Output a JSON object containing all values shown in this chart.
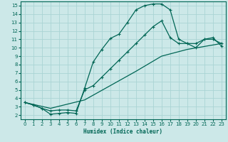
{
  "xlabel": "Humidex (Indice chaleur)",
  "background_color": "#cce8e8",
  "grid_color": "#aad4d4",
  "line_color": "#006655",
  "xlim_min": -0.5,
  "xlim_max": 23.5,
  "ylim_min": 1.5,
  "ylim_max": 15.5,
  "xticks": [
    0,
    1,
    2,
    3,
    4,
    5,
    6,
    7,
    8,
    9,
    10,
    11,
    12,
    13,
    14,
    15,
    16,
    17,
    18,
    19,
    20,
    21,
    22,
    23
  ],
  "yticks": [
    2,
    3,
    4,
    5,
    6,
    7,
    8,
    9,
    10,
    11,
    12,
    13,
    14,
    15
  ],
  "line1_x": [
    0,
    1,
    2,
    3,
    4,
    5,
    6,
    7,
    8,
    9,
    10,
    11,
    12,
    13,
    14,
    15,
    16,
    17,
    18,
    19,
    20,
    21,
    22,
    23
  ],
  "line1_y": [
    3.5,
    3.2,
    2.8,
    2.1,
    2.2,
    2.3,
    2.2,
    5.2,
    8.3,
    9.8,
    11.1,
    11.6,
    13.0,
    14.5,
    15.0,
    15.2,
    15.2,
    14.5,
    11.0,
    10.5,
    10.0,
    11.0,
    11.0,
    10.5
  ],
  "line2_x": [
    0,
    1,
    2,
    3,
    4,
    5,
    6,
    7,
    8,
    9,
    10,
    11,
    12,
    13,
    14,
    15,
    16,
    17,
    18,
    19,
    20,
    21,
    22,
    23
  ],
  "line2_y": [
    3.5,
    3.2,
    2.8,
    2.5,
    2.6,
    2.6,
    2.5,
    5.0,
    5.5,
    6.5,
    7.5,
    8.5,
    9.5,
    10.5,
    11.5,
    12.5,
    13.2,
    11.2,
    10.5,
    10.5,
    10.5,
    11.0,
    11.2,
    10.2
  ],
  "line3_x": [
    0,
    3,
    7,
    10,
    13,
    16,
    19,
    23
  ],
  "line3_y": [
    3.5,
    2.8,
    3.8,
    5.5,
    7.2,
    9.0,
    9.8,
    10.5
  ]
}
